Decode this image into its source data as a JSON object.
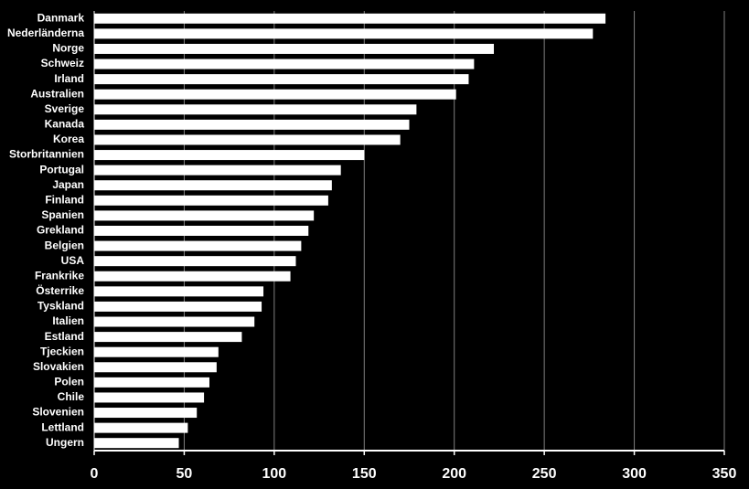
{
  "chart_data": {
    "type": "bar",
    "orientation": "horizontal",
    "categories": [
      "Danmark",
      "Nederländerna",
      "Norge",
      "Schweiz",
      "Irland",
      "Australien",
      "Sverige",
      "Kanada",
      "Korea",
      "Storbritannien",
      "Portugal",
      "Japan",
      "Finland",
      "Spanien",
      "Grekland",
      "Belgien",
      "USA",
      "Frankrike",
      "Österrike",
      "Tyskland",
      "Italien",
      "Estland",
      "Tjeckien",
      "Slovakien",
      "Polen",
      "Chile",
      "Slovenien",
      "Lettland",
      "Ungern"
    ],
    "values": [
      284,
      277,
      222,
      211,
      208,
      201,
      179,
      175,
      170,
      150,
      137,
      132,
      130,
      122,
      119,
      115,
      112,
      109,
      94,
      93,
      89,
      82,
      69,
      68,
      64,
      61,
      57,
      52,
      47
    ],
    "color": "#ffffff",
    "xlim": [
      0,
      350
    ],
    "xticks": [
      0,
      50,
      100,
      150,
      200,
      250,
      300,
      350
    ],
    "grid": true
  }
}
